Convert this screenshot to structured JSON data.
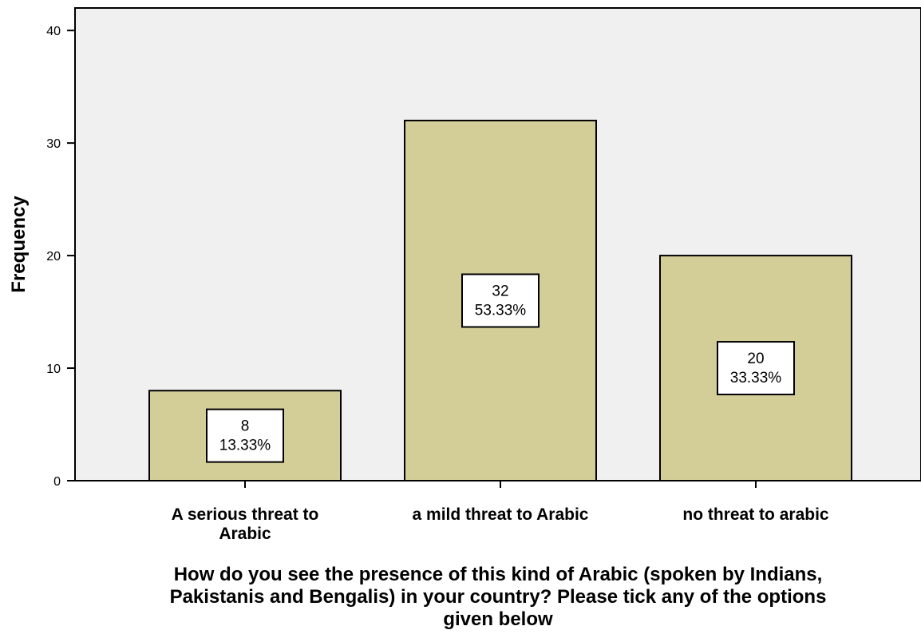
{
  "chart_data": {
    "type": "bar",
    "categories": [
      "A serious threat to Arabic",
      "a mild threat to Arabic",
      "no threat to arabic"
    ],
    "category_lines": [
      [
        "A serious threat to",
        "Arabic"
      ],
      [
        "a mild threat to Arabic"
      ],
      [
        "no threat to arabic"
      ]
    ],
    "values": [
      8,
      32,
      20
    ],
    "percent_labels": [
      "13.33%",
      "53.33%",
      "33.33%"
    ],
    "ylabel": "Frequency",
    "xlabel": "How do you see the presence of this kind of Arabic (spoken by Indians, Pakistanis and Bengalis)   in your country?  Please tick any of the options given below",
    "xlabel_lines": [
      "How do you see the presence of this kind of Arabic (spoken by Indians,",
      "Pakistanis and Bengalis)   in your country?  Please tick any of the options",
      "given below"
    ],
    "ylim": [
      0,
      42
    ],
    "yticks": [
      0,
      10,
      20,
      30,
      40
    ],
    "grid": false,
    "colors": {
      "bar_fill": "#d3cd98",
      "plot_background": "#f0f0f0",
      "stroke": "#000000"
    }
  }
}
